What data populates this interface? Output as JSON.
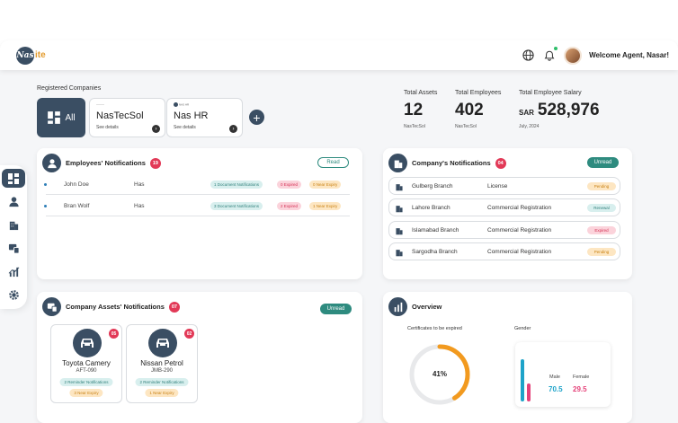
{
  "header": {
    "logo_mark": "Nas",
    "logo_text": "Nas",
    "logo_suffix": "ite",
    "welcome": "Welcome Agent, Nasar!"
  },
  "companies": {
    "section_title": "Registered Companies",
    "all_label": "All",
    "items": [
      {
        "name": "NasTecSol",
        "link": "See details",
        "logo_caption": "———"
      },
      {
        "name": "Nas HR",
        "link": "See details",
        "logo_caption": "NAS HR"
      }
    ]
  },
  "stats": {
    "assets": {
      "label": "Total Assets",
      "value": "12",
      "sub": "NasTecSol"
    },
    "employees": {
      "label": "Total Employees",
      "value": "402",
      "sub": "NasTecSol"
    },
    "salary": {
      "label": "Total Employee Salary",
      "currency": "SAR",
      "value": "528,976",
      "sub": "July, 2024"
    }
  },
  "employee_notifications": {
    "title": "Employees' Notifications",
    "count": "19",
    "button": "Read",
    "rows": [
      {
        "name": "John Doe",
        "has": "Has",
        "doc": "1 Document Notifications",
        "expired": "0 Expired",
        "near": "0 Near Expiry"
      },
      {
        "name": "Bran Wolf",
        "has": "Has",
        "doc": "3 Document Notifications",
        "expired": "2 Expired",
        "near": "1 Near Expiry"
      }
    ]
  },
  "company_notifications": {
    "title": "Company's Notifications",
    "count": "04",
    "button": "Unread",
    "rows": [
      {
        "branch": "Gulberg Branch",
        "type": "License",
        "status": "Pending"
      },
      {
        "branch": "Lahore Branch",
        "type": "Commercial Registration",
        "status": "Renewal"
      },
      {
        "branch": "Islamabad Branch",
        "type": "Commercial Registration",
        "status": "Expired"
      },
      {
        "branch": "Sargodha Branch",
        "type": "Commercial Registration",
        "status": "Pending"
      }
    ]
  },
  "asset_notifications": {
    "title": "Company Assets' Notifications",
    "count": "07",
    "button": "Unread",
    "items": [
      {
        "name": "Toyota Camery",
        "code": "AFT-090",
        "count": "05",
        "reminders": "2 Reminder Notifications",
        "near": "3 Near Expiry"
      },
      {
        "name": "Nissan Petrol",
        "code": "JMB-290",
        "count": "02",
        "reminders": "2 Reminder Notifications",
        "near": "1 Near Expiry"
      }
    ]
  },
  "overview": {
    "title": "Overview",
    "certs_label": "Certificates to be expired",
    "certs_value": "41%",
    "certs_fraction": 0.41,
    "gender_label": "Gender",
    "male_label": "Male",
    "male_value": "70.5",
    "female_label": "Female",
    "female_value": "29.5"
  },
  "colors": {
    "primary": "#3a4e63",
    "teal": "#2e8b7f",
    "danger": "#e23957",
    "donut": "#f29a1f",
    "male": "#1ea3c9",
    "female": "#e5437a"
  }
}
